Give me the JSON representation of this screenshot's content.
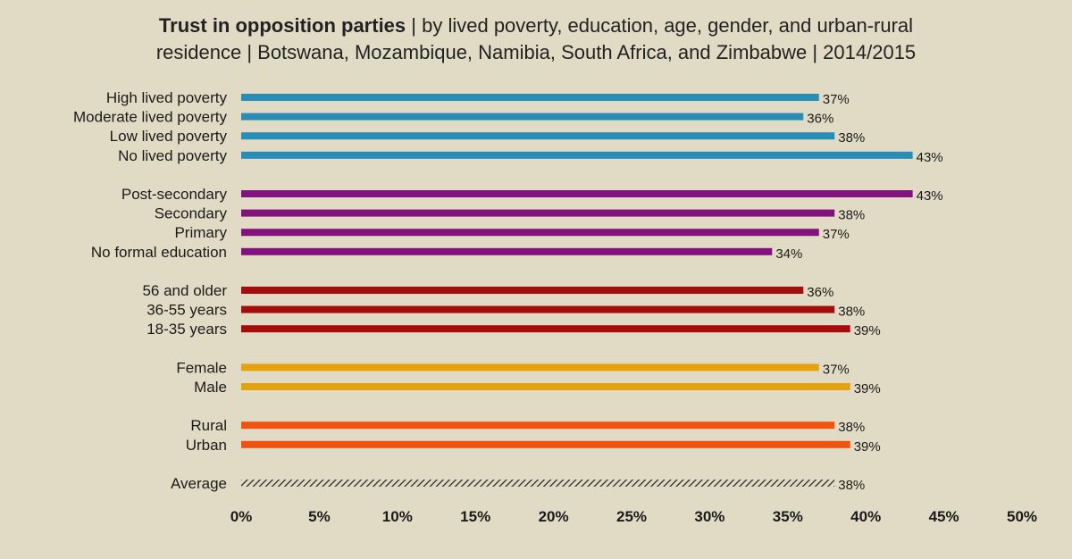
{
  "chart_data": {
    "type": "bar",
    "orientation": "horizontal",
    "title": {
      "bold": "Trust in opposition parties",
      "line1_rest": " | by lived poverty, education, age, gender, and urban-rural",
      "line2": "residence | Botswana, Mozambique, Namibia, South Africa, and Zimbabwe | 2014/2015"
    },
    "xlim": [
      0,
      50
    ],
    "x_ticks": [
      "0%",
      "5%",
      "10%",
      "15%",
      "20%",
      "25%",
      "30%",
      "35%",
      "40%",
      "45%",
      "50%"
    ],
    "grid": false,
    "groups": [
      {
        "name": "Lived poverty",
        "color": "#2a8db5",
        "bars": [
          {
            "category": "High lived poverty",
            "value": 37,
            "label": "37%"
          },
          {
            "category": "Moderate lived poverty",
            "value": 36,
            "label": "36%"
          },
          {
            "category": "Low lived poverty",
            "value": 38,
            "label": "38%"
          },
          {
            "category": "No lived poverty",
            "value": 43,
            "label": "43%"
          }
        ]
      },
      {
        "name": "Education",
        "color": "#82127d",
        "bars": [
          {
            "category": "Post-secondary",
            "value": 43,
            "label": "43%"
          },
          {
            "category": "Secondary",
            "value": 38,
            "label": "38%"
          },
          {
            "category": "Primary",
            "value": 37,
            "label": "37%"
          },
          {
            "category": "No formal education",
            "value": 34,
            "label": "34%"
          }
        ]
      },
      {
        "name": "Age",
        "color": "#a50d0d",
        "bars": [
          {
            "category": "56 and older",
            "value": 36,
            "label": "36%"
          },
          {
            "category": "36-55 years",
            "value": 38,
            "label": "38%"
          },
          {
            "category": "18-35 years",
            "value": 39,
            "label": "39%"
          }
        ]
      },
      {
        "name": "Gender",
        "color": "#e4a30e",
        "bars": [
          {
            "category": "Female",
            "value": 37,
            "label": "37%"
          },
          {
            "category": "Male",
            "value": 39,
            "label": "39%"
          }
        ]
      },
      {
        "name": "Urban-rural",
        "color": "#f0530d",
        "bars": [
          {
            "category": "Rural",
            "value": 38,
            "label": "38%"
          },
          {
            "category": "Urban",
            "value": 39,
            "label": "39%"
          }
        ]
      },
      {
        "name": "Average",
        "color": "#2b2b2b",
        "pattern": "hatched",
        "bars": [
          {
            "category": "Average",
            "value": 38,
            "label": "38%"
          }
        ]
      }
    ]
  }
}
